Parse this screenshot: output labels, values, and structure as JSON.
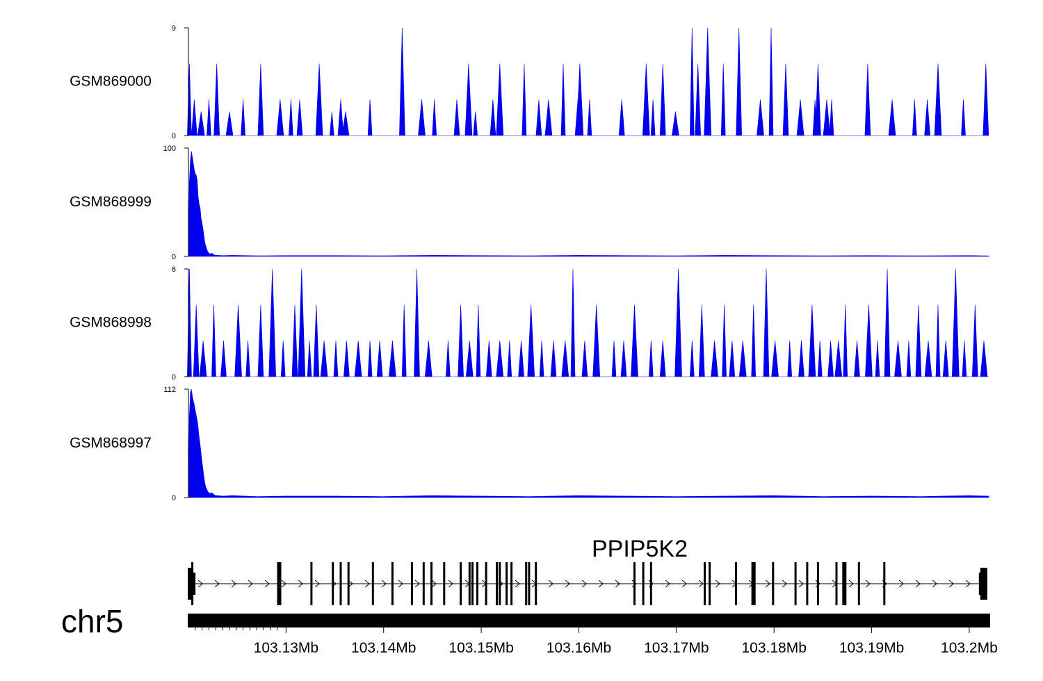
{
  "chart_data": {
    "type": "area",
    "region": {
      "chromosome": "chr5",
      "xlim": [
        103.12,
        103.202
      ]
    },
    "tracks": [
      {
        "name": "GSM869000",
        "ylim": [
          0,
          9
        ],
        "tick_labels": [
          "9",
          "0"
        ],
        "color": "#0000ee",
        "x": [
          103.1201,
          103.1206,
          103.1213,
          103.1221,
          103.1229,
          103.1242,
          103.1256,
          103.1274,
          103.1294,
          103.1305,
          103.1314,
          103.1334,
          103.1347,
          103.1356,
          103.1361,
          103.1386,
          103.1419,
          103.1439,
          103.1452,
          103.1475,
          103.1487,
          103.1494,
          103.1512,
          103.1519,
          103.1544,
          103.1559,
          103.1569,
          103.1584,
          103.1599,
          103.1601,
          103.1611,
          103.1644,
          103.1669,
          103.1676,
          103.1686,
          103.1699,
          103.1716,
          103.1722,
          103.1732,
          103.1748,
          103.1764,
          103.1786,
          103.1797,
          103.1812,
          103.1827,
          103.1842,
          103.1845,
          103.1854,
          103.1859,
          103.1896,
          103.1921,
          103.1944,
          103.1957,
          103.1968,
          103.1994,
          103.2017
        ],
        "values": [
          6,
          3,
          2,
          3,
          6,
          2,
          3,
          6,
          3,
          3,
          3,
          6,
          2,
          3,
          2,
          3,
          9,
          3,
          3,
          3,
          6,
          2,
          3,
          6,
          6,
          3,
          3,
          6,
          3,
          6,
          3,
          3,
          6,
          3,
          6,
          2,
          9,
          6,
          9,
          6,
          9,
          3,
          9,
          6,
          3,
          3,
          6,
          3,
          3,
          6,
          3,
          3,
          3,
          6,
          3,
          6
        ]
      },
      {
        "name": "GSM868999",
        "ylim": [
          0,
          100
        ],
        "tick_labels": [
          "100",
          "0"
        ],
        "color": "#0000ee",
        "x": [
          103.12,
          103.1201,
          103.1202,
          103.1203,
          103.1204,
          103.1205,
          103.1206,
          103.1207,
          103.1208,
          103.1209,
          103.121,
          103.1211,
          103.1212,
          103.1213,
          103.1214,
          103.1215,
          103.1216,
          103.1217,
          103.1218,
          103.1219,
          103.122,
          103.1221,
          103.1222,
          103.1224,
          103.1226,
          103.1228,
          103.123,
          103.1235,
          103.1245,
          103.127,
          103.13,
          103.135,
          103.14,
          103.145,
          103.15,
          103.155,
          103.16,
          103.165,
          103.17,
          103.175,
          103.18,
          103.185,
          103.19,
          103.195,
          103.2,
          103.202
        ],
        "values": [
          2,
          70,
          88,
          97,
          92,
          86,
          80,
          76,
          75,
          70,
          55,
          48,
          45,
          35,
          30,
          25,
          18,
          12,
          9,
          6,
          4,
          3,
          2,
          3,
          1.5,
          1,
          1,
          0.8,
          1,
          0.6,
          0.8,
          0.8,
          0.6,
          1,
          0.8,
          0.6,
          1,
          0.8,
          0.6,
          1,
          0.8,
          0.6,
          0.8,
          0.6,
          0.8,
          0.5
        ]
      },
      {
        "name": "GSM868998",
        "ylim": [
          0,
          6
        ],
        "tick_labels": [
          "6",
          "0"
        ],
        "color": "#0000ee",
        "x": [
          103.1201,
          103.1208,
          103.1215,
          103.1226,
          103.1236,
          103.1251,
          103.1261,
          103.1274,
          103.1286,
          103.1297,
          103.1309,
          103.1316,
          103.1324,
          103.1331,
          103.1339,
          103.1351,
          103.1362,
          103.1374,
          103.1386,
          103.1396,
          103.1409,
          103.1421,
          103.1434,
          103.1446,
          103.1466,
          103.1479,
          103.1488,
          103.1497,
          103.1508,
          103.1519,
          103.1529,
          103.1541,
          103.1551,
          103.1562,
          103.1574,
          103.1586,
          103.1594,
          103.1606,
          103.1618,
          103.1636,
          103.1646,
          103.1657,
          103.1674,
          103.1686,
          103.1702,
          103.1716,
          103.1726,
          103.1739,
          103.1749,
          103.1757,
          103.1768,
          103.1779,
          103.1792,
          103.1801,
          103.1816,
          103.1828,
          103.1839,
          103.1847,
          103.1858,
          103.1866,
          103.1873,
          103.1885,
          103.1897,
          103.1906,
          103.1916,
          103.1927,
          103.1938,
          103.1948,
          103.1958,
          103.1968,
          103.1976,
          103.1986,
          103.1995,
          103.2006,
          103.2015
        ],
        "values": [
          6,
          4,
          2,
          4,
          2,
          4,
          2,
          4,
          6,
          2,
          4,
          6,
          2,
          4,
          2,
          2,
          2,
          2,
          2,
          2,
          2,
          4,
          6,
          2,
          2,
          4,
          2,
          4,
          2,
          2,
          2,
          2,
          4,
          2,
          2,
          2,
          6,
          2,
          4,
          2,
          2,
          4,
          2,
          2,
          6,
          2,
          4,
          2,
          4,
          2,
          2,
          4,
          6,
          2,
          2,
          2,
          4,
          2,
          2,
          2,
          4,
          2,
          4,
          2,
          6,
          2,
          2,
          4,
          2,
          4,
          2,
          6,
          2,
          4,
          2
        ]
      },
      {
        "name": "GSM868997",
        "ylim": [
          0,
          112
        ],
        "tick_labels": [
          "112",
          "0"
        ],
        "color": "#0000ee",
        "x": [
          103.12,
          103.1201,
          103.1202,
          103.1203,
          103.1204,
          103.1205,
          103.1206,
          103.1207,
          103.1208,
          103.1209,
          103.121,
          103.1211,
          103.1212,
          103.1213,
          103.1214,
          103.1215,
          103.1216,
          103.1217,
          103.1218,
          103.1219,
          103.122,
          103.1221,
          103.1222,
          103.1224,
          103.1226,
          103.1228,
          103.123,
          103.1235,
          103.1245,
          103.127,
          103.13,
          103.135,
          103.14,
          103.145,
          103.15,
          103.155,
          103.16,
          103.165,
          103.17,
          103.175,
          103.18,
          103.185,
          103.19,
          103.195,
          103.2,
          103.202
        ],
        "values": [
          2,
          85,
          108,
          112,
          105,
          100,
          96,
          90,
          85,
          80,
          72,
          62,
          55,
          45,
          36,
          28,
          20,
          14,
          10,
          8,
          6,
          5,
          4,
          5,
          3,
          2,
          2,
          1.5,
          2,
          1,
          1.5,
          1.5,
          1,
          2,
          1.5,
          1,
          2,
          1.5,
          1,
          1.5,
          2,
          1,
          1.5,
          1,
          2,
          1.5
        ]
      }
    ],
    "gene": {
      "name": "PPIP5K2",
      "strand": "+",
      "exons": [
        103.12015,
        103.1204,
        103.1293,
        103.1294,
        103.1326,
        103.1348,
        103.1356,
        103.1364,
        103.1389,
        103.1409,
        103.1429,
        103.1441,
        103.1449,
        103.1462,
        103.1479,
        103.1488,
        103.1491,
        103.1496,
        103.1505,
        103.1516,
        103.1519,
        103.1526,
        103.1531,
        103.1546,
        103.1549,
        103.1556,
        103.1657,
        103.1666,
        103.1674,
        103.1729,
        103.1734,
        103.1761,
        103.1778,
        103.1779,
        103.1799,
        103.1822,
        103.1834,
        103.1845,
        103.1864,
        103.1872,
        103.1887,
        103.1913,
        103.2017
      ]
    },
    "axis": {
      "ticks": [
        103.13,
        103.14,
        103.15,
        103.16,
        103.17,
        103.18,
        103.19,
        103.2
      ],
      "tick_labels": [
        "103.13Mb",
        "103.14Mb",
        "103.15Mb",
        "103.16Mb",
        "103.17Mb",
        "103.18Mb",
        "103.19Mb",
        "103.2Mb"
      ]
    }
  }
}
